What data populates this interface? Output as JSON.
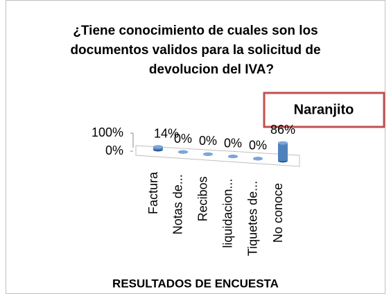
{
  "chart_data": {
    "type": "bar3d",
    "title": "¿Tiene conocimiento de cuales son los documentos validos para la solicitud de devolucion del IVA?",
    "categories": [
      "Factura",
      "Notas de...",
      "Recibos",
      "liquidacion...",
      "Tiquetes de...",
      "No conoce"
    ],
    "series": [
      {
        "name": "Naranjito",
        "color": "#4f81bd",
        "values": [
          14,
          0,
          0,
          0,
          0,
          86
        ],
        "value_labels": [
          "14%",
          "0%",
          "0%",
          "0%",
          "0%",
          "86%"
        ]
      }
    ],
    "ylim": [
      0,
      100
    ],
    "yticks": [
      {
        "value": 0,
        "label": "0%"
      },
      {
        "value": 100,
        "label": "100%"
      }
    ],
    "xlabel": "RESULTADOS DE ENCUESTA"
  }
}
